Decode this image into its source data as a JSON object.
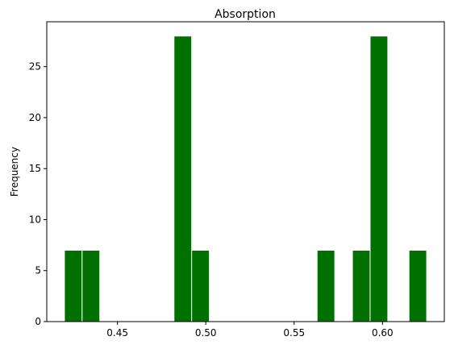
{
  "chart_data": {
    "type": "bar",
    "subtype": "histogram",
    "title": "Absorption",
    "xlabel": "",
    "ylabel": "Frequency",
    "bins": [
      {
        "x0": 0.42,
        "x1": 0.43,
        "count": 7
      },
      {
        "x0": 0.43,
        "x1": 0.44,
        "count": 7
      },
      {
        "x0": 0.482,
        "x1": 0.492,
        "count": 28
      },
      {
        "x0": 0.492,
        "x1": 0.502,
        "count": 7
      },
      {
        "x0": 0.563,
        "x1": 0.573,
        "count": 7
      },
      {
        "x0": 0.583,
        "x1": 0.593,
        "count": 7
      },
      {
        "x0": 0.593,
        "x1": 0.603,
        "count": 28
      },
      {
        "x0": 0.615,
        "x1": 0.625,
        "count": 7
      }
    ],
    "xlim": [
      0.41,
      0.635
    ],
    "ylim": [
      0,
      29.4
    ],
    "xticks": [
      0.45,
      0.5,
      0.55,
      0.6
    ],
    "xtick_labels": [
      "0.45",
      "0.50",
      "0.55",
      "0.60"
    ],
    "yticks": [
      0,
      5,
      10,
      15,
      20,
      25
    ],
    "ytick_labels": [
      "0",
      "5",
      "10",
      "15",
      "20",
      "25"
    ],
    "bar_color": "#007000",
    "edge_color": "#ffffff",
    "grid": false,
    "legend": false
  }
}
